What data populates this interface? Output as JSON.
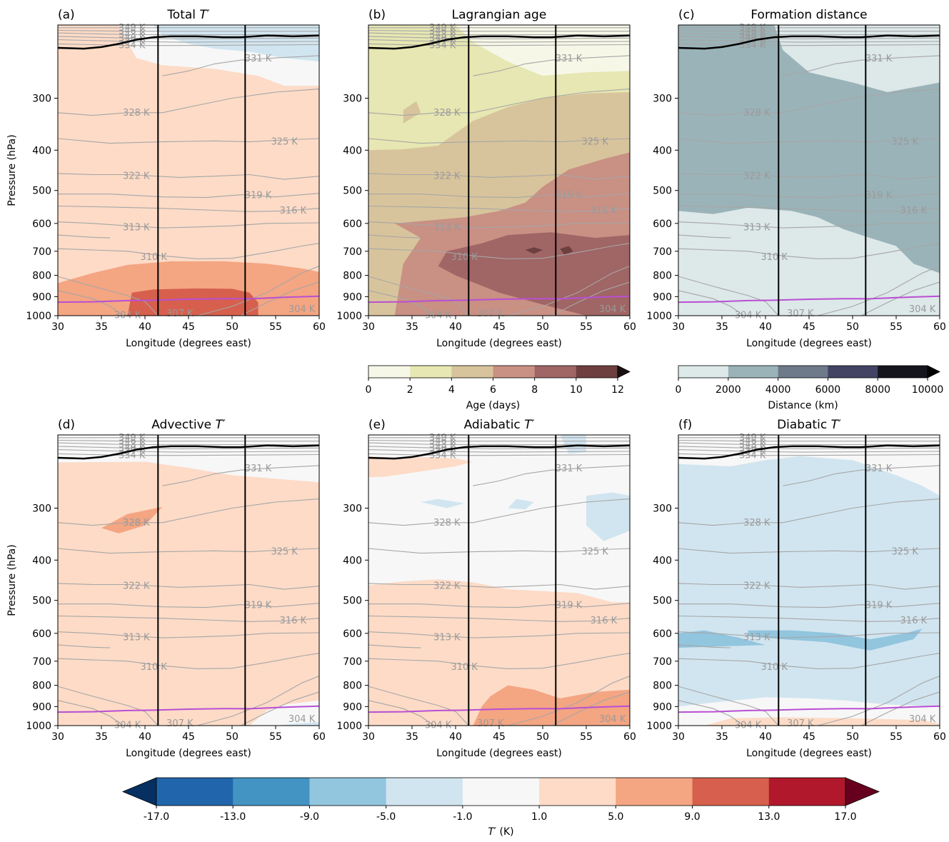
{
  "figure": {
    "y_axis_label": "Pressure (hPa)",
    "x_axis_label": "Longitude (degrees east)",
    "x_ticks": [
      30,
      35,
      40,
      45,
      50,
      55,
      60
    ],
    "y_ticks": [
      300,
      400,
      500,
      600,
      700,
      800,
      900,
      1000
    ],
    "boundary_lines_lon": [
      41.5,
      51.5
    ],
    "theta_labels": [
      "349 K",
      "346 K",
      "343 K",
      "340 K",
      "337 K",
      "334 K",
      "331 K",
      "328 K",
      "325 K",
      "322 K",
      "319 K",
      "316 K",
      "313 K",
      "310 K",
      "307 K",
      "304 K"
    ]
  },
  "panels": [
    {
      "letter": "(a)",
      "title_text": "Total ",
      "title_var": "T′",
      "field": "total"
    },
    {
      "letter": "(b)",
      "title_text": "Lagrangian age",
      "title_var": "",
      "field": "age"
    },
    {
      "letter": "(c)",
      "title_text": "Formation distance",
      "title_var": "",
      "field": "distance"
    },
    {
      "letter": "(d)",
      "title_text": "Advective ",
      "title_var": "T′",
      "field": "advective"
    },
    {
      "letter": "(e)",
      "title_text": "Adiabatic ",
      "title_var": "T′",
      "field": "adiabatic"
    },
    {
      "letter": "(f)",
      "title_text": "Diabatic ",
      "title_var": "T′",
      "field": "diabatic"
    }
  ],
  "colorbars": {
    "age": {
      "label": "Age (days)",
      "ticks": [
        "0",
        "2",
        "4",
        "6",
        "8",
        "10",
        "12"
      ],
      "colors": [
        "#f7f7e8",
        "#e6e7b2",
        "#d8c49c",
        "#c99084",
        "#a06565",
        "#6e3f3f",
        "#1a1010"
      ]
    },
    "distance": {
      "label": "Distance (km)",
      "ticks": [
        "0",
        "2000",
        "4000",
        "6000",
        "8000",
        "10000"
      ],
      "colors": [
        "#dde8e9",
        "#9ab3b8",
        "#6e7a8a",
        "#434363",
        "#15151d",
        "#000000"
      ]
    },
    "tprime": {
      "label_var": "T′",
      "label_unit": " (K)",
      "ticks": [
        "-17.0",
        "-13.0",
        "-9.0",
        "-5.0",
        "-1.0",
        "1.0",
        "5.0",
        "9.0",
        "13.0",
        "17.0"
      ],
      "colors": [
        "#053061",
        "#2166ac",
        "#4393c3",
        "#92c5de",
        "#d1e5f0",
        "#f7f7f7",
        "#fddbc7",
        "#f4a582",
        "#d6604d",
        "#b2182b",
        "#67001f"
      ]
    }
  },
  "colors": {
    "tropopause": "#000000",
    "boundary_layer": "#b94fd4",
    "theta_contours": "#a6a6a6",
    "theta_labels": "#9a9a9a"
  },
  "chart_data": [
    {
      "type": "heatmap",
      "panel": "(a)",
      "title": "Total T′",
      "xlabel": "Longitude (degrees east)",
      "ylabel": "Pressure (hPa)",
      "xlim": [
        30,
        60
      ],
      "ylim": [
        1000,
        200
      ],
      "regions": [
        {
          "description": "warm anomaly 1 to 5 K throughout troposphere",
          "value_range": [
            1,
            5
          ]
        },
        {
          "description": "cool anomaly -5 to -1 K near tropopause east of 40E",
          "value_range": [
            -5,
            -1
          ]
        },
        {
          "description": "warm 5 to 9 K below 750 hPa",
          "value_range": [
            5,
            9
          ]
        },
        {
          "description": "warm 9 to 13 K core 860-1000 hPa, 38-53E",
          "value_range": [
            9,
            13
          ]
        }
      ]
    },
    {
      "type": "heatmap",
      "panel": "(b)",
      "title": "Lagrangian age",
      "xlabel": "Longitude (degrees east)",
      "units": "days",
      "regions": [
        {
          "description": "0-2 days in stratosphere",
          "value_range": [
            0,
            2
          ]
        },
        {
          "description": "2-4 days upper troposphere above 400 hPa",
          "value_range": [
            2,
            4
          ]
        },
        {
          "description": "4-6 days mid troposphere",
          "value_range": [
            4,
            6
          ]
        },
        {
          "description": "6-8 days lower troposphere east",
          "value_range": [
            6,
            8
          ]
        },
        {
          "description": "8-10 days 640-880 hPa, 38-60E",
          "value_range": [
            8,
            10
          ]
        },
        {
          "description": "10-12 days small patches near 700 hPa, 48E",
          "value_range": [
            10,
            12
          ]
        }
      ]
    },
    {
      "type": "heatmap",
      "panel": "(c)",
      "title": "Formation distance",
      "xlabel": "Longitude (degrees east)",
      "units": "km",
      "regions": [
        {
          "description": "0-2000 km stratosphere and lower troposphere west",
          "value_range": [
            0,
            2000
          ]
        },
        {
          "description": "2000-4000 km upper and eastern troposphere",
          "value_range": [
            2000,
            4000
          ]
        }
      ]
    },
    {
      "type": "heatmap",
      "panel": "(d)",
      "title": "Advective T′",
      "xlabel": "Longitude (degrees east)",
      "regions": [
        {
          "description": "warm 1 to 5 K throughout troposphere",
          "value_range": [
            1,
            5
          ]
        },
        {
          "description": "warm 5 to 9 K patch near 300 hPa, 35-42E",
          "value_range": [
            5,
            9
          ]
        },
        {
          "description": "near zero in stratosphere",
          "value_range": [
            -1,
            1
          ]
        }
      ]
    },
    {
      "type": "heatmap",
      "panel": "(e)",
      "title": "Adiabatic T′",
      "xlabel": "Longitude (degrees east)",
      "regions": [
        {
          "description": "near zero upper troposphere",
          "value_range": [
            -1,
            1
          ]
        },
        {
          "description": "warm 1 to 5 K below 460 hPa",
          "value_range": [
            1,
            5
          ]
        },
        {
          "description": "warm 5 to 9 K patches below 800 hPa",
          "value_range": [
            5,
            9
          ]
        },
        {
          "description": "cool -5 to -1 K patches near 300 hPa",
          "value_range": [
            -5,
            -1
          ]
        }
      ]
    },
    {
      "type": "heatmap",
      "panel": "(f)",
      "title": "Diabatic T′",
      "xlabel": "Longitude (degrees east)",
      "regions": [
        {
          "description": "cool -5 to -1 K throughout troposphere",
          "value_range": [
            -5,
            -1
          ]
        },
        {
          "description": "cool -9 to -5 K band near 600-650 hPa",
          "value_range": [
            -9,
            -5
          ]
        },
        {
          "description": "near zero below 800 hPa",
          "value_range": [
            -1,
            1
          ]
        }
      ]
    }
  ]
}
